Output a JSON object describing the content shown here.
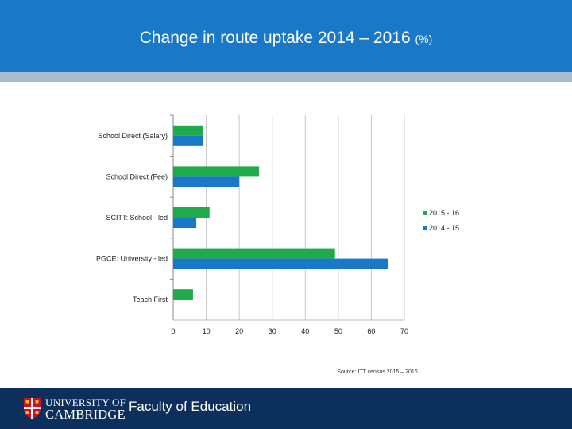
{
  "slide": {
    "title_main": "Change in route uptake 2014 – 2016",
    "title_unit": "(%)",
    "source": "Source: ITT census 2015 – 2016",
    "university_line1": "UNIVERSITY OF",
    "university_line2": "CAMBRIDGE",
    "faculty": "Faculty of Education"
  },
  "colors": {
    "header": "#1a78c8",
    "footer": "#0d2f5c",
    "series_2015_16": "#1faa4b",
    "series_2014_15": "#1a78c8"
  },
  "chart_data": {
    "type": "bar",
    "orientation": "horizontal",
    "categories": [
      "School Direct (Salary)",
      "School Direct (Fee)",
      "SCITT: School - led",
      "PGCE: University - led",
      "Teach First"
    ],
    "series": [
      {
        "name": "2015 - 16",
        "values": [
          9,
          26,
          11,
          49,
          6
        ]
      },
      {
        "name": "2014 - 15",
        "values": [
          9,
          20,
          7,
          65,
          0
        ]
      }
    ],
    "xlim": [
      0,
      70
    ],
    "xticks": [
      "0",
      "10",
      "20",
      "30",
      "40",
      "50",
      "60",
      "70"
    ],
    "grid": true,
    "legend": "right"
  }
}
